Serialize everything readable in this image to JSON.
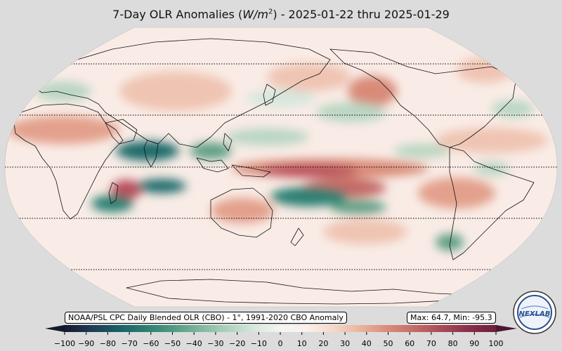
{
  "title": {
    "prefix": "7-Day OLR Anomalies (",
    "unit_main": "W/m",
    "unit_exp": "2",
    "suffix": ") - 2025-01-22 thru 2025-01-29"
  },
  "source_label": "NOAA/PSL CPC Daily Blended OLR (CBO) - 1°, 1991-2020 CBO Anomaly",
  "maxmin_label": "Max: 64.7,  Min: -95.3",
  "logo_text": "NEXLAB",
  "colorbar": {
    "ticks": [
      "−100",
      "−90",
      "−80",
      "−70",
      "−60",
      "−50",
      "−40",
      "−30",
      "−20",
      "−10",
      "0",
      "10",
      "20",
      "30",
      "40",
      "50",
      "60",
      "70",
      "80",
      "90",
      "100"
    ],
    "min": -100,
    "max": 100,
    "colors": [
      "#131b30",
      "#1f3b55",
      "#1a5f66",
      "#2b7f72",
      "#4f9a82",
      "#7fb79c",
      "#acd1bb",
      "#d5e7dc",
      "#f3f6f2",
      "#fdf0ea",
      "#f6d6c7",
      "#eab29c",
      "#d98b78",
      "#c36b66",
      "#a84a58",
      "#8a2f4a",
      "#6b1f3c"
    ],
    "extend": "both"
  },
  "map_colors": {
    "ocean": "#f9ece6",
    "outline": "#111111",
    "warm_light": "#efc4b2",
    "warm_mid": "#d98b78",
    "warm_strong": "#b94e5c",
    "cool_light": "#b9d6c3",
    "cool_mid": "#5f9f84",
    "cool_strong": "#1d6a6a"
  }
}
